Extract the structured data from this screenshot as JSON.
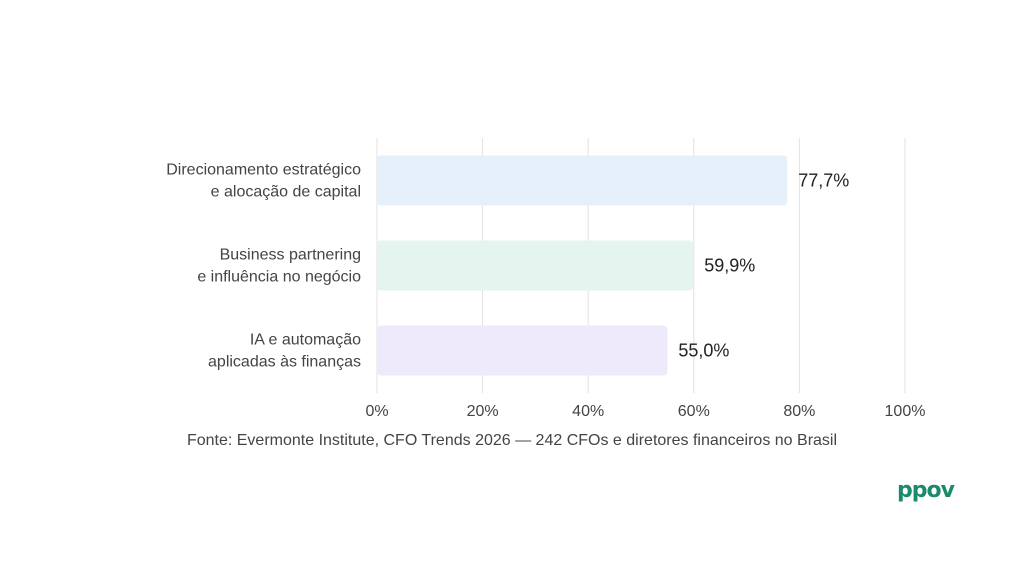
{
  "chart_data": {
    "type": "bar",
    "orientation": "horizontal",
    "categories": [
      [
        "Direcionamento estratégico",
        "e alocação de capital"
      ],
      [
        "Business partnering",
        "e influência no negócio"
      ],
      [
        "IA e automação",
        "aplicadas às finanças"
      ]
    ],
    "values": [
      77.7,
      59.9,
      55.0
    ],
    "value_labels": [
      "77,7%",
      "59,9%",
      "55,0%"
    ],
    "bar_colors": [
      "#e6f0fb",
      "#e3f5ee",
      "#eeeafb"
    ],
    "xlim": [
      0,
      100
    ],
    "xticks": [
      0,
      20,
      40,
      60,
      80,
      100
    ],
    "xtick_labels": [
      "0%",
      "20%",
      "40%",
      "60%",
      "80%",
      "100%"
    ],
    "grid": "vertical",
    "xlabel": "",
    "ylabel": ""
  },
  "source_note": "Fonte: Evermonte Institute, CFO Trends 2026 — 242 CFOs e diretores financeiros no Brasil",
  "logo_text": "ppov",
  "colors": {
    "grid": "#e2e2e2",
    "text": "#444444",
    "logo": "#1a8a6a"
  }
}
